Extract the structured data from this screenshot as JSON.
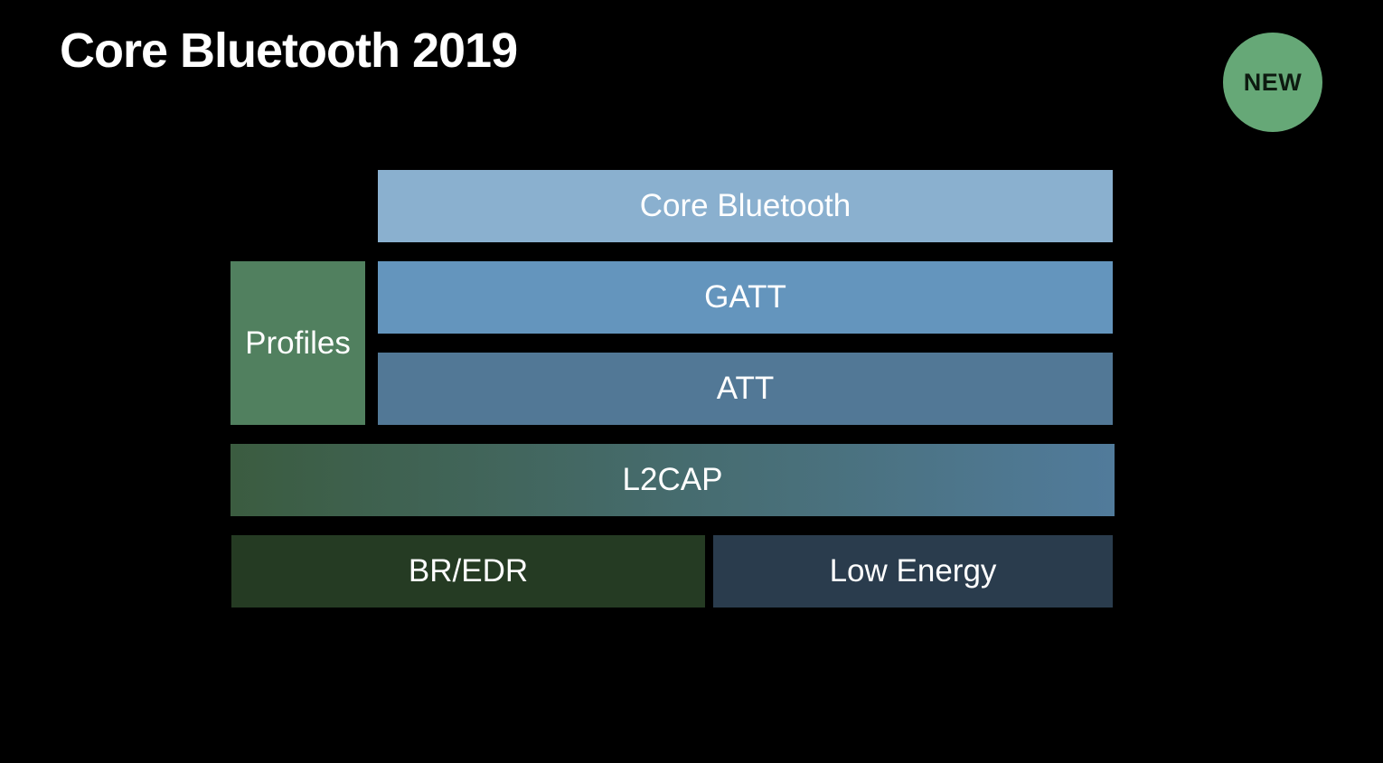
{
  "slide": {
    "title": "Core Bluetooth 2019",
    "badge": "NEW"
  },
  "stack": {
    "core_bluetooth": "Core Bluetooth",
    "gatt": "GATT",
    "att": "ATT",
    "profiles": "Profiles",
    "l2cap": "L2CAP",
    "br_edr": "BR/EDR",
    "low_energy": "Low Energy"
  },
  "colors": {
    "background": "#000000",
    "badge": "#66a877",
    "core_bluetooth": "#8ab0cf",
    "gatt": "#6495bd",
    "att": "#527896",
    "profiles": "#51805f",
    "l2cap_start": "#3b5c40",
    "l2cap_end": "#517b9b",
    "br_edr": "#253b23",
    "low_energy": "#2a3c4d"
  }
}
